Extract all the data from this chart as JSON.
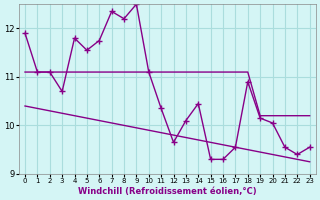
{
  "xlabel": "Windchill (Refroidissement éolien,°C)",
  "background_color": "#d4f5f5",
  "grid_color": "#aadddd",
  "line_color": "#880088",
  "x_hours": [
    0,
    1,
    2,
    3,
    4,
    5,
    6,
    7,
    8,
    9,
    10,
    11,
    12,
    13,
    14,
    15,
    16,
    17,
    18,
    19,
    20,
    21,
    22,
    23
  ],
  "y_windchill": [
    11.9,
    11.1,
    11.1,
    10.7,
    11.8,
    11.55,
    11.75,
    12.35,
    12.2,
    12.5,
    11.1,
    10.35,
    9.65,
    10.1,
    10.45,
    9.3,
    9.3,
    9.55,
    10.9,
    10.15,
    10.05,
    9.55,
    9.4,
    9.55
  ],
  "y_linear": [
    10.4,
    10.35,
    10.3,
    10.25,
    10.2,
    10.15,
    10.1,
    10.05,
    10.0,
    9.95,
    9.9,
    9.85,
    9.8,
    9.75,
    9.7,
    9.65,
    9.6,
    9.55,
    9.5,
    9.45,
    9.4,
    9.35,
    9.3,
    9.25
  ],
  "y_flat": [
    11.1,
    11.1,
    11.1,
    11.1,
    11.1,
    11.1,
    11.1,
    11.1,
    11.1,
    11.1,
    11.1,
    11.1,
    11.1,
    11.1,
    11.1,
    11.1,
    11.1,
    11.1,
    11.1,
    10.2,
    10.2,
    10.2,
    10.2,
    10.2
  ],
  "ylim": [
    9.0,
    12.5
  ],
  "yticks": [
    9,
    10,
    11,
    12
  ],
  "xtick_labels": [
    "0",
    "1",
    "2",
    "3",
    "4",
    "5",
    "6",
    "7",
    "8",
    "9",
    "10",
    "11",
    "12",
    "13",
    "14",
    "15",
    "16",
    "17",
    "18",
    "19",
    "20",
    "21",
    "22",
    "23"
  ]
}
